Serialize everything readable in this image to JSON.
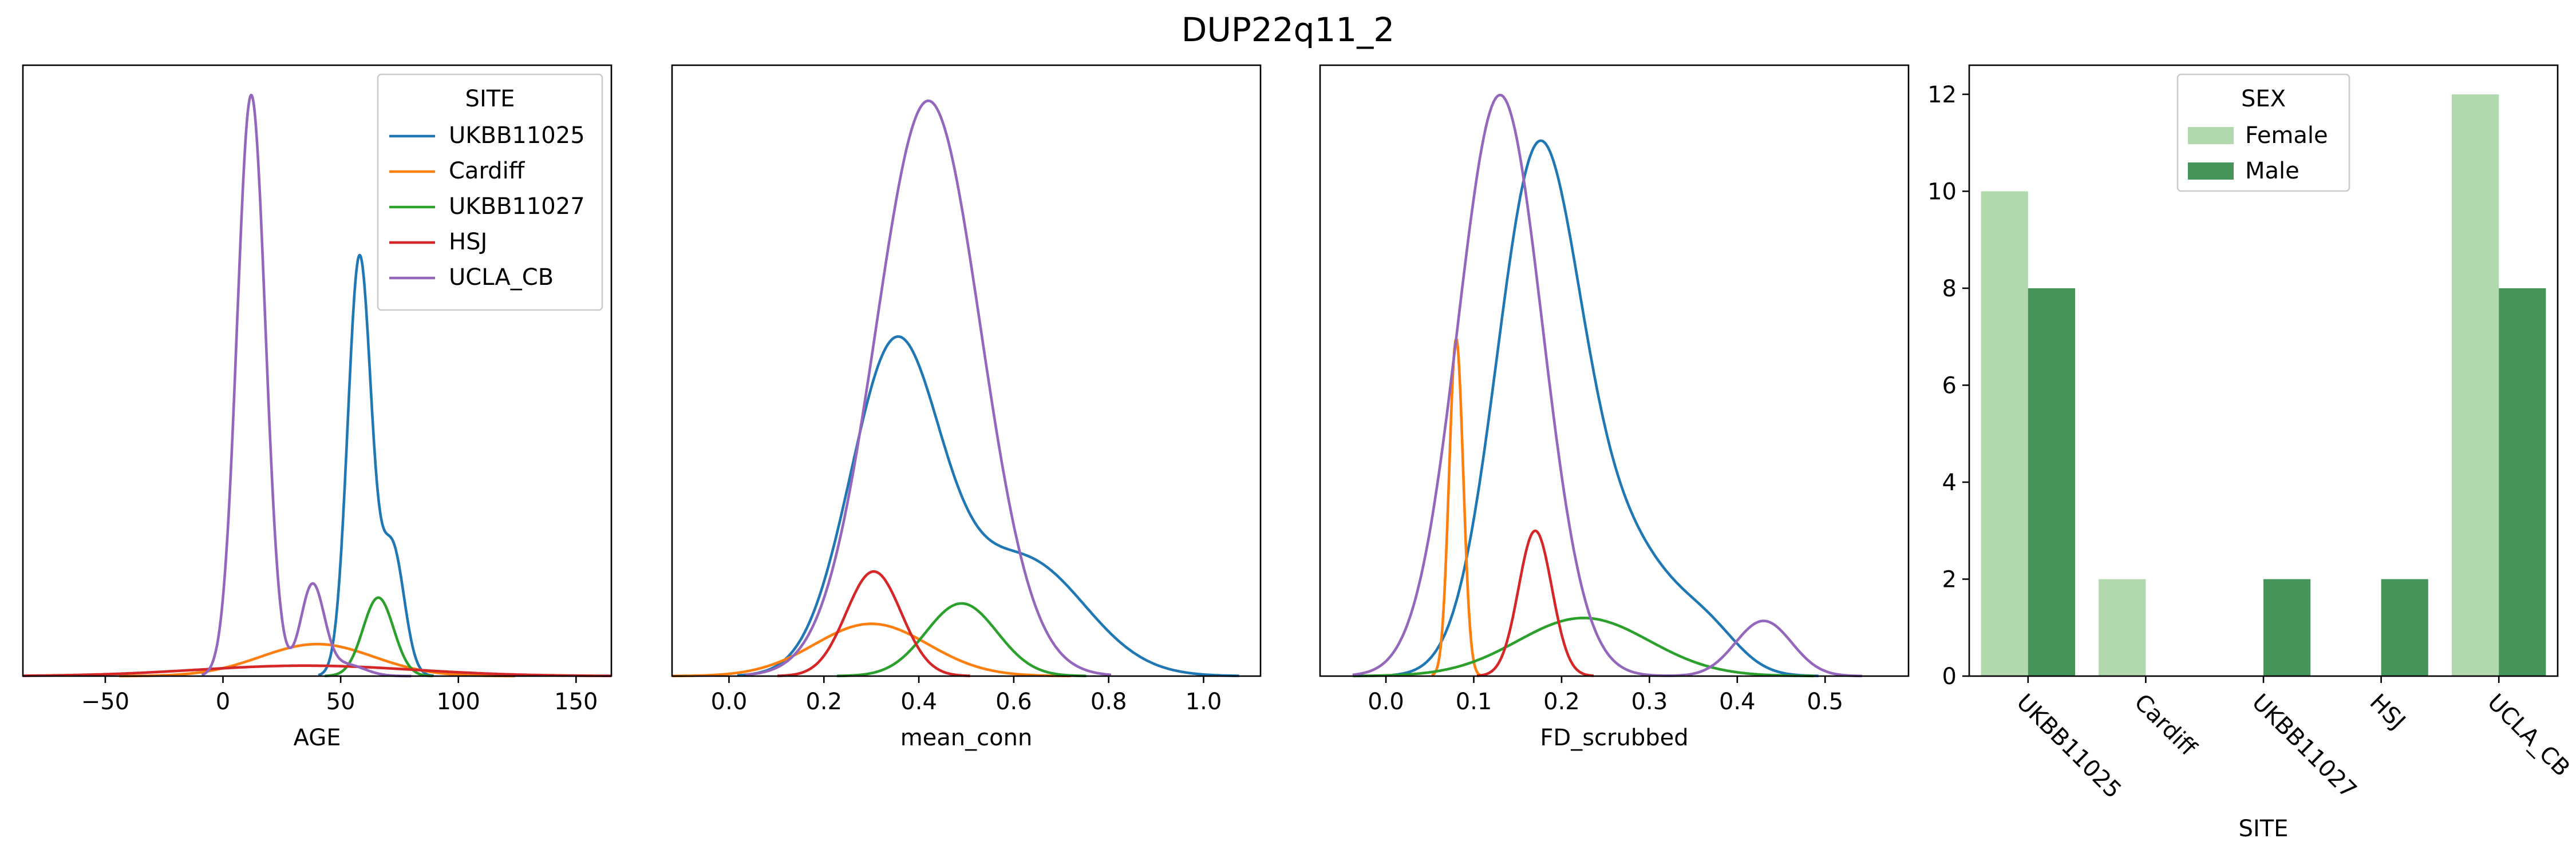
{
  "suptitle": "DUP22q11_2",
  "colors": {
    "UKBB11025": "#1f77b4",
    "Cardiff": "#ff7f0e",
    "UKBB11027": "#2ca02c",
    "HSJ": "#d62728",
    "UCLA_CB": "#9467bd",
    "Female": "#b2d8ae",
    "Male": "#45955b"
  },
  "chart_data": [
    {
      "type": "line",
      "kind": "kde",
      "xlabel": "AGE",
      "xlim": [
        -85,
        165
      ],
      "ylim": [
        0,
        1
      ],
      "xticks": [
        -50,
        0,
        50,
        100,
        150
      ],
      "xticklabels": [
        "−50",
        "0",
        "50",
        "100",
        "150"
      ],
      "legend": {
        "title": "SITE",
        "placement": "upper right"
      },
      "series": [
        {
          "name": "UKBB11025",
          "components": [
            [
              58,
              5,
              0.72
            ],
            [
              72,
              5,
              0.22
            ]
          ]
        },
        {
          "name": "Cardiff",
          "components": [
            [
              40,
              24,
              0.055
            ]
          ]
        },
        {
          "name": "UKBB11027",
          "components": [
            [
              66,
              6.5,
              0.135
            ]
          ]
        },
        {
          "name": "HSJ",
          "components": [
            [
              35,
              46,
              0.018
            ]
          ]
        },
        {
          "name": "UCLA_CB",
          "components": [
            [
              12,
              6,
              1.0
            ],
            [
              38,
              5,
              0.155
            ],
            [
              52,
              8,
              0.02
            ]
          ]
        }
      ]
    },
    {
      "type": "line",
      "kind": "kde",
      "xlabel": "mean_conn",
      "xlim": [
        -0.12,
        1.12
      ],
      "ylim": [
        0,
        1
      ],
      "xticks": [
        0.0,
        0.2,
        0.4,
        0.6,
        0.8,
        1.0
      ],
      "xticklabels": [
        "0.0",
        "0.2",
        "0.4",
        "0.6",
        "0.8",
        "1.0"
      ],
      "series": [
        {
          "name": "UKBB11025",
          "components": [
            [
              0.35,
              0.095,
              0.56
            ],
            [
              0.62,
              0.13,
              0.2
            ]
          ]
        },
        {
          "name": "Cardiff",
          "components": [
            [
              0.3,
              0.12,
              0.09
            ]
          ]
        },
        {
          "name": "UKBB11027",
          "components": [
            [
              0.49,
              0.075,
              0.125
            ]
          ]
        },
        {
          "name": "HSJ",
          "components": [
            [
              0.305,
              0.058,
              0.18
            ]
          ]
        },
        {
          "name": "UCLA_CB",
          "components": [
            [
              0.42,
              0.11,
              0.99
            ]
          ]
        }
      ]
    },
    {
      "type": "line",
      "kind": "kde",
      "xlabel": "FD_scrubbed",
      "xlim": [
        -0.075,
        0.595
      ],
      "ylim": [
        0,
        1
      ],
      "xticks": [
        0.0,
        0.1,
        0.2,
        0.3,
        0.4,
        0.5
      ],
      "xticklabels": [
        "0.0",
        "0.1",
        "0.2",
        "0.3",
        "0.4",
        "0.5"
      ],
      "series": [
        {
          "name": "UKBB11025",
          "components": [
            [
              0.172,
              0.047,
              0.86
            ],
            [
              0.27,
              0.06,
              0.22
            ],
            [
              0.37,
              0.035,
              0.05
            ]
          ]
        },
        {
          "name": "Cardiff",
          "components": [
            [
              0.08,
              0.008,
              0.58
            ]
          ]
        },
        {
          "name": "UKBB11027",
          "components": [
            [
              0.225,
              0.075,
              0.1
            ]
          ]
        },
        {
          "name": "HSJ",
          "components": [
            [
              0.17,
              0.019,
              0.25
            ]
          ]
        },
        {
          "name": "UCLA_CB",
          "components": [
            [
              0.13,
              0.048,
              1.0
            ],
            [
              0.43,
              0.032,
              0.095
            ]
          ]
        }
      ]
    },
    {
      "type": "bar",
      "xlabel": "SITE",
      "categories": [
        "UKBB11025",
        "Cardiff",
        "UKBB11027",
        "HSJ",
        "UCLA_CB"
      ],
      "ylim": [
        0,
        12.6
      ],
      "yticks": [
        0,
        2,
        4,
        6,
        8,
        10,
        12
      ],
      "yticklabels": [
        "0",
        "2",
        "4",
        "6",
        "8",
        "10",
        "12"
      ],
      "legend": {
        "title": "SEX",
        "placement": "upper center"
      },
      "series": [
        {
          "name": "Female",
          "values": [
            10,
            2,
            0,
            0,
            12
          ]
        },
        {
          "name": "Male",
          "values": [
            8,
            0,
            2,
            2,
            8
          ]
        }
      ]
    }
  ]
}
